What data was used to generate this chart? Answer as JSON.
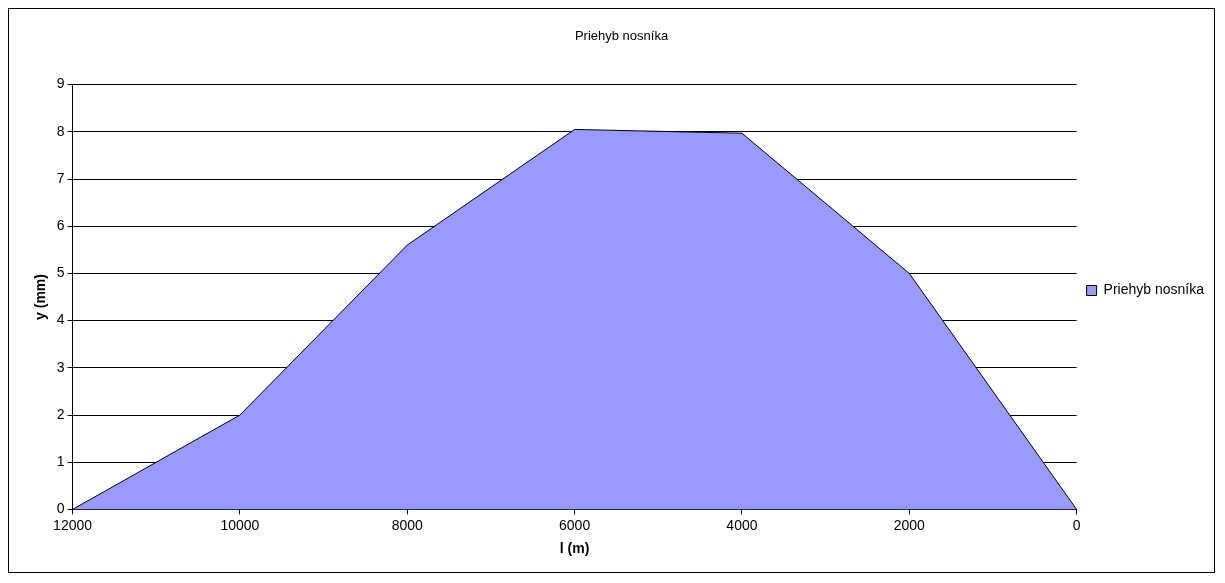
{
  "chart_data": {
    "type": "area",
    "title": "Priehyb nosníka",
    "xlabel": "l (m)",
    "ylabel": "y (mm)",
    "categories": [
      "12000",
      "10000",
      "8000",
      "6000",
      "4000",
      "2000",
      "0"
    ],
    "series": [
      {
        "name": "Priehyb nosníka",
        "color": "#9999ff",
        "values": [
          0,
          2,
          5.6,
          8.05,
          7.97,
          5,
          0
        ]
      }
    ],
    "ylim": [
      0,
      9
    ],
    "yticks": [
      0,
      1,
      2,
      3,
      4,
      5,
      6,
      7,
      8,
      9
    ],
    "grid": "y",
    "legend": "right"
  }
}
